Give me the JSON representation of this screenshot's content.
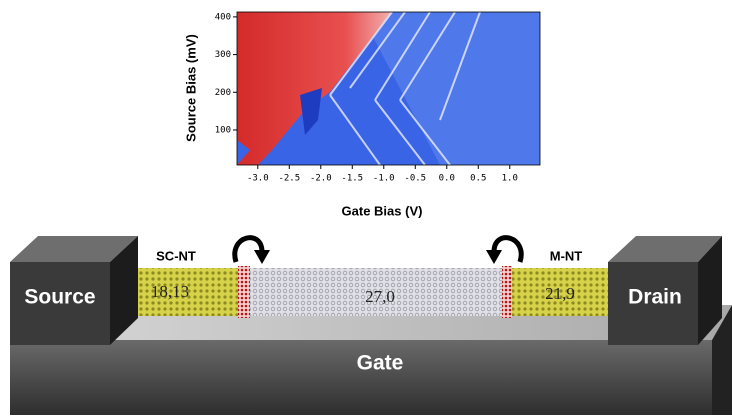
{
  "plot": {
    "ylabel": "Source Bias (mV)",
    "xlabel": "Gate Bias (V)",
    "xlim": [
      -3.33,
      1.48
    ],
    "ylim": [
      7,
      413
    ],
    "xticks": [
      {
        "value": -3,
        "label": "-3.0"
      },
      {
        "value": -2.5,
        "label": "-2.5"
      },
      {
        "value": -2,
        "label": "-2.0"
      },
      {
        "value": -1.5,
        "label": "-1.5"
      },
      {
        "value": -1,
        "label": "-1.0"
      },
      {
        "value": -0.5,
        "label": "-0.5"
      },
      {
        "value": 0,
        "label": "0.0"
      },
      {
        "value": 0.5,
        "label": "0.5"
      },
      {
        "value": 1,
        "label": "1.0"
      }
    ],
    "yticks": [
      100,
      200,
      300,
      400
    ]
  },
  "device": {
    "source": "Source",
    "drain": "Drain",
    "gate": "Gate",
    "left_tube": "SC-NT",
    "right_tube": "M-NT",
    "left_chirality": "18,13",
    "middle_chirality": "27,0",
    "right_chirality": "21,9"
  }
}
